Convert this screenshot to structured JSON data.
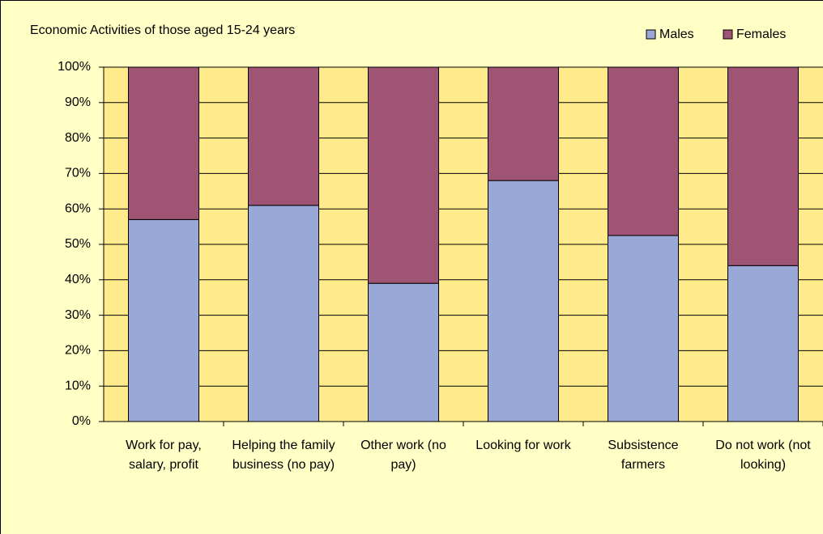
{
  "chart_data": {
    "type": "stacked_bar",
    "title": "Economic Activities of those aged 15-24 years",
    "categories": [
      "Work for pay, salary, profit",
      "Helping the family business (no pay)",
      "Other work (no pay)",
      "Looking for work",
      "Subsistence farmers",
      "Do not work (not looking)"
    ],
    "series": [
      {
        "name": "Males",
        "color": "#99a8d6",
        "values": [
          57,
          61,
          39,
          68,
          52.5,
          44
        ]
      },
      {
        "name": "Females",
        "color": "#a05474",
        "values": [
          43,
          39,
          61,
          32,
          47.5,
          56
        ]
      }
    ],
    "ylim": [
      0,
      100
    ],
    "yticks": [
      {
        "value": 0,
        "label": "0%"
      },
      {
        "value": 10,
        "label": "10%"
      },
      {
        "value": 20,
        "label": "20%"
      },
      {
        "value": 30,
        "label": "30%"
      },
      {
        "value": 40,
        "label": "40%"
      },
      {
        "value": 50,
        "label": "50%"
      },
      {
        "value": 60,
        "label": "60%"
      },
      {
        "value": 70,
        "label": "70%"
      },
      {
        "value": 80,
        "label": "80%"
      },
      {
        "value": 90,
        "label": "90%"
      },
      {
        "value": 100,
        "label": "100%"
      }
    ],
    "grid": true,
    "legend": "top-right"
  }
}
